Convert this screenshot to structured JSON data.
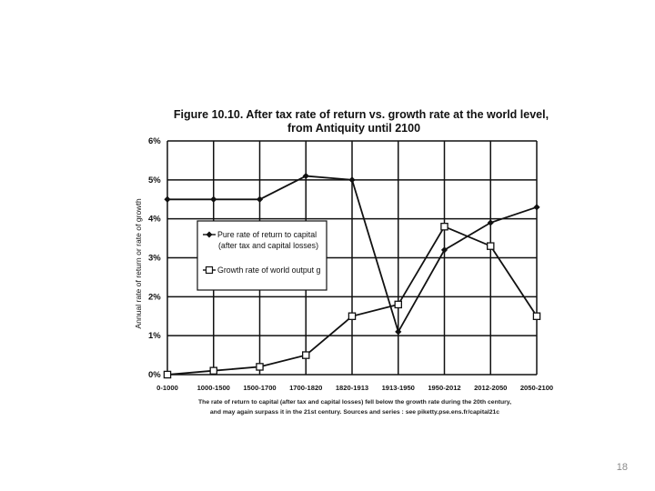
{
  "page_number": "18",
  "chart_data": {
    "type": "line",
    "title_line1": "Figure 10.10. After tax rate of return vs. growth rate at the world level,",
    "title_line2": "from Antiquity until 2100",
    "ylabel": "Annual rate of return or rate of growth",
    "y_ticks": [
      "0%",
      "1%",
      "2%",
      "3%",
      "4%",
      "5%",
      "6%"
    ],
    "ylim": [
      0,
      6
    ],
    "grid": "horizontal and vertical",
    "categories": [
      "0-1000",
      "1000-1500",
      "1500-1700",
      "1700-1820",
      "1820-1913",
      "1913-1950",
      "1950-2012",
      "2012-2050",
      "2050-2100"
    ],
    "series": [
      {
        "name_line1": "Pure rate of return to capital",
        "name_line2": "(after tax and capital losses)",
        "marker": "filled-diamond",
        "color": "#111111",
        "values": [
          4.5,
          4.5,
          4.5,
          5.1,
          5.0,
          1.1,
          3.2,
          3.9,
          4.3
        ]
      },
      {
        "name_line1": "Growth rate of world output g",
        "name_line2": "",
        "marker": "open-square",
        "color": "#111111",
        "values": [
          0.0,
          0.1,
          0.2,
          0.5,
          1.5,
          1.8,
          3.8,
          3.3,
          1.5
        ]
      }
    ],
    "legend_position": "inside-left-middle",
    "caption_line1": "The rate of return to capital (after tax and capital losses) fell below the growth rate during the 20th century,",
    "caption_line2": "and may again surpass it in the 21st century. Sources and series : see piketty.pse.ens.fr/capital21c"
  }
}
